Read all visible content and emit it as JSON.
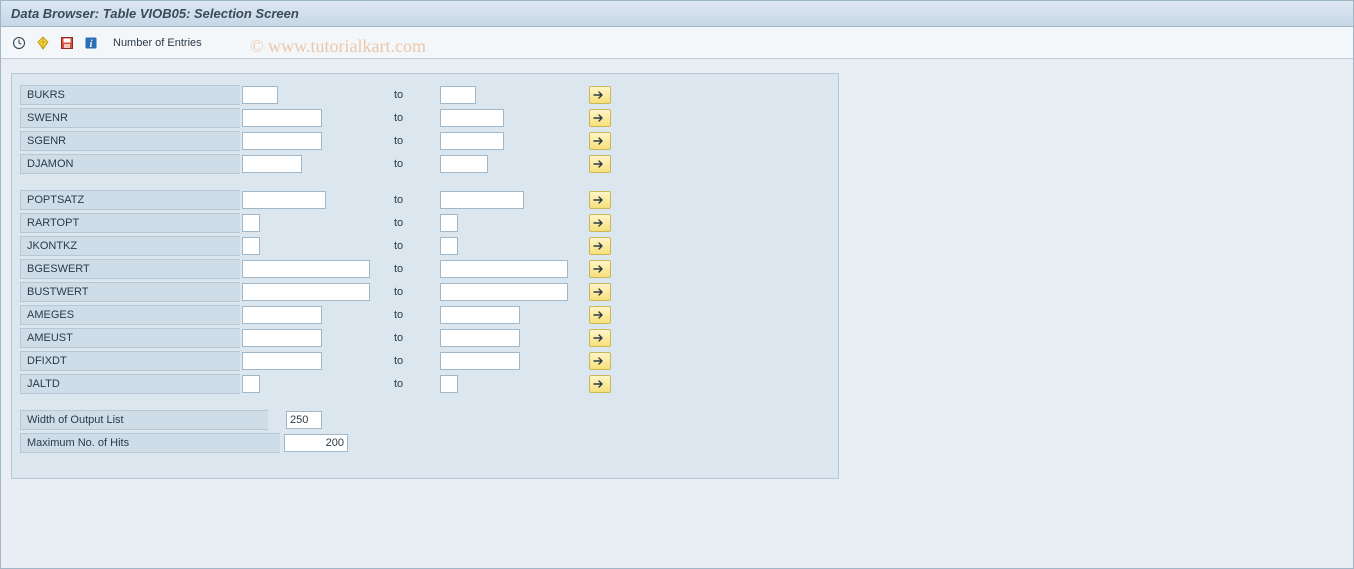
{
  "colors": {
    "window_bg": "#e8eef4",
    "titlebar_gradient_top": "#dde8f2",
    "titlebar_gradient_bottom": "#c7d7e6",
    "panel_bg": "#dbe6ef",
    "label_bg": "#cfdde9",
    "border": "#b7c7d6",
    "input_border": "#9fb7c9",
    "text": "#2a3a48",
    "more_btn_top": "#fff5c8",
    "more_btn_bottom": "#f7e07a",
    "more_btn_border": "#c9b85a",
    "watermark": "#e4a06a"
  },
  "title": "Data Browser: Table VIOB05: Selection Screen",
  "toolbar": {
    "execute_tooltip": "Execute",
    "variant_tooltip": "Get Variant",
    "save_tooltip": "Save",
    "info_tooltip": "Information",
    "entries_label": "Number of Entries"
  },
  "watermark": "©  www.tutorialkart.com",
  "to_label": "to",
  "groups": [
    {
      "id": "g1",
      "rows": [
        {
          "field": "BUKRS",
          "from_w": 36,
          "to_w": 36
        },
        {
          "field": "SWENR",
          "from_w": 80,
          "to_w": 64
        },
        {
          "field": "SGENR",
          "from_w": 80,
          "to_w": 64
        },
        {
          "field": "DJAMON",
          "from_w": 60,
          "to_w": 48
        }
      ]
    },
    {
      "id": "g2",
      "rows": [
        {
          "field": "POPTSATZ",
          "from_w": 84,
          "to_w": 84
        },
        {
          "field": "RARTOPT",
          "from_w": 18,
          "to_w": 18
        },
        {
          "field": "JKONTKZ",
          "from_w": 18,
          "to_w": 18
        },
        {
          "field": "BGESWERT",
          "from_w": 128,
          "to_w": 128
        },
        {
          "field": "BUSTWERT",
          "from_w": 128,
          "to_w": 128
        },
        {
          "field": "AMEGES",
          "from_w": 80,
          "to_w": 80
        },
        {
          "field": "AMEUST",
          "from_w": 80,
          "to_w": 80
        },
        {
          "field": "DFIXDT",
          "from_w": 80,
          "to_w": 80
        },
        {
          "field": "JALTD",
          "from_w": 18,
          "to_w": 18
        }
      ]
    }
  ],
  "bottom": {
    "width_label": "Width of Output List",
    "width_value": "250",
    "maxhits_label": "Maximum No. of Hits",
    "maxhits_value": "200"
  }
}
